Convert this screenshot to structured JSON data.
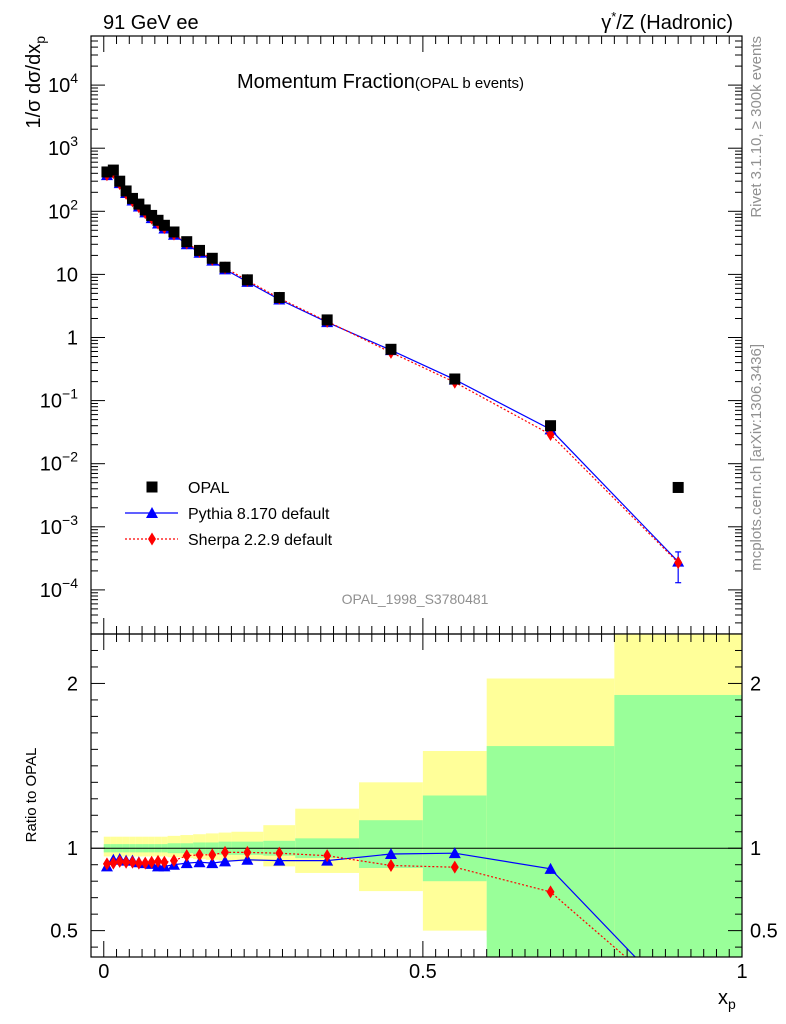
{
  "header": {
    "left": "91 GeV ee",
    "right_prefix": "γ",
    "right_sup": "*",
    "right_suffix": "/Z (Hadronic)"
  },
  "side_text": {
    "rivet": "Rivet 3.1.10, ≥ 300k events",
    "mcplots": "mcplots.cern.ch [arXiv:1306.3436]"
  },
  "watermark": "OPAL_1998_S3780481",
  "chart_data": [
    {
      "type": "scatter",
      "panel": "main",
      "title": "Momentum Fraction",
      "subtitle": "(OPAL b events)",
      "ylabel": "1/σ dσ/dx",
      "ylabel_sub": "p",
      "yscale": "log",
      "ylim": [
        2e-05,
        60000
      ],
      "xlim": [
        -0.02,
        1.0
      ],
      "yticks": [
        {
          "v": 0.0001,
          "b": "10",
          "e": "−4"
        },
        {
          "v": 0.001,
          "b": "10",
          "e": "−3"
        },
        {
          "v": 0.01,
          "b": "10",
          "e": "−2"
        },
        {
          "v": 0.1,
          "b": "10",
          "e": "−1"
        },
        {
          "v": 1,
          "b": "1",
          "e": ""
        },
        {
          "v": 10,
          "b": "10",
          "e": ""
        },
        {
          "v": 100,
          "b": "10",
          "e": "2"
        },
        {
          "v": 1000,
          "b": "10",
          "e": "3"
        },
        {
          "v": 10000,
          "b": "10",
          "e": "4"
        }
      ],
      "legend_position": "bottom-left",
      "series": [
        {
          "name": "OPAL",
          "color": "#000000",
          "marker": "square",
          "points": [
            [
              0.005,
              420
            ],
            [
              0.015,
              450
            ],
            [
              0.025,
              300
            ],
            [
              0.035,
              210
            ],
            [
              0.045,
              160
            ],
            [
              0.055,
              130
            ],
            [
              0.065,
              105
            ],
            [
              0.075,
              86
            ],
            [
              0.085,
              72
            ],
            [
              0.095,
              60
            ],
            [
              0.11,
              47
            ],
            [
              0.13,
              33
            ],
            [
              0.15,
              24
            ],
            [
              0.17,
              18
            ],
            [
              0.19,
              13
            ],
            [
              0.225,
              8.2
            ],
            [
              0.275,
              4.3
            ],
            [
              0.35,
              1.9
            ],
            [
              0.45,
              0.65
            ],
            [
              0.55,
              0.22
            ],
            [
              0.7,
              0.04
            ],
            [
              0.9,
              0.0042
            ]
          ]
        },
        {
          "name": "Pythia 8.170 default",
          "color": "#0000ff",
          "marker": "triangle",
          "line": "solid",
          "points": [
            [
              0.005,
              375
            ],
            [
              0.015,
              420
            ],
            [
              0.025,
              280
            ],
            [
              0.035,
              195
            ],
            [
              0.045,
              148
            ],
            [
              0.055,
              119
            ],
            [
              0.065,
              96
            ],
            [
              0.075,
              78
            ],
            [
              0.085,
              64
            ],
            [
              0.095,
              53.5
            ],
            [
              0.11,
              42.5
            ],
            [
              0.13,
              30
            ],
            [
              0.15,
              22
            ],
            [
              0.17,
              16.5
            ],
            [
              0.19,
              12
            ],
            [
              0.225,
              7.6
            ],
            [
              0.275,
              4.0
            ],
            [
              0.35,
              1.75
            ],
            [
              0.45,
              0.63
            ],
            [
              0.55,
              0.215
            ],
            [
              0.7,
              0.035
            ],
            [
              0.9,
              0.00028
            ]
          ]
        },
        {
          "name": "Sherpa 2.2.9 default",
          "color": "#ff0000",
          "marker": "diamond",
          "line": "dotted",
          "points": [
            [
              0.005,
              380
            ],
            [
              0.015,
              410
            ],
            [
              0.025,
              275
            ],
            [
              0.035,
              192
            ],
            [
              0.045,
              146
            ],
            [
              0.055,
              118
            ],
            [
              0.065,
              95
            ],
            [
              0.075,
              78
            ],
            [
              0.085,
              65
            ],
            [
              0.095,
              55
            ],
            [
              0.11,
              43.5
            ],
            [
              0.13,
              31.5
            ],
            [
              0.15,
              23.2
            ],
            [
              0.17,
              17.3
            ],
            [
              0.19,
              12.7
            ],
            [
              0.225,
              8.0
            ],
            [
              0.275,
              4.2
            ],
            [
              0.35,
              1.8
            ],
            [
              0.45,
              0.58
            ],
            [
              0.55,
              0.195
            ],
            [
              0.7,
              0.029
            ],
            [
              0.9,
              0.00027
            ]
          ]
        }
      ]
    },
    {
      "type": "line",
      "panel": "ratio",
      "ylabel": "Ratio to OPAL",
      "xlabel": "x",
      "xlabel_sub": "p",
      "xlim": [
        -0.02,
        1.0
      ],
      "ylim": [
        0.34,
        2.3
      ],
      "yticks": [
        0.5,
        1,
        2
      ],
      "ytick_labels": [
        "0.5",
        "1",
        "2"
      ],
      "xticks": [
        0,
        0.5,
        1
      ],
      "xtick_labels": [
        "0",
        "0.5",
        "1"
      ],
      "uncertainty_bands": {
        "bins": [
          [
            0.0,
            0.01
          ],
          [
            0.01,
            0.02
          ],
          [
            0.02,
            0.03
          ],
          [
            0.03,
            0.04
          ],
          [
            0.04,
            0.05
          ],
          [
            0.05,
            0.06
          ],
          [
            0.06,
            0.07
          ],
          [
            0.07,
            0.08
          ],
          [
            0.08,
            0.09
          ],
          [
            0.09,
            0.1
          ],
          [
            0.1,
            0.12
          ],
          [
            0.12,
            0.14
          ],
          [
            0.14,
            0.16
          ],
          [
            0.16,
            0.18
          ],
          [
            0.18,
            0.2
          ],
          [
            0.2,
            0.25
          ],
          [
            0.25,
            0.3
          ],
          [
            0.3,
            0.4
          ],
          [
            0.4,
            0.5
          ],
          [
            0.5,
            0.6
          ],
          [
            0.6,
            0.8
          ],
          [
            0.8,
            1.0
          ]
        ],
        "stat_color": "#99ff99",
        "total_color": "#ffff99",
        "stat": [
          [
            0.975,
            1.025
          ],
          [
            0.975,
            1.025
          ],
          [
            0.975,
            1.025
          ],
          [
            0.975,
            1.025
          ],
          [
            0.975,
            1.025
          ],
          [
            0.975,
            1.025
          ],
          [
            0.975,
            1.025
          ],
          [
            0.975,
            1.025
          ],
          [
            0.975,
            1.025
          ],
          [
            0.975,
            1.025
          ],
          [
            0.97,
            1.03
          ],
          [
            0.97,
            1.03
          ],
          [
            0.965,
            1.035
          ],
          [
            0.965,
            1.035
          ],
          [
            0.96,
            1.04
          ],
          [
            0.96,
            1.04
          ],
          [
            0.955,
            1.045
          ],
          [
            0.94,
            1.06
          ],
          [
            0.88,
            1.17
          ],
          [
            0.8,
            1.32
          ],
          [
            0.34,
            1.62
          ],
          [
            0.34,
            1.93
          ]
        ],
        "total": [
          [
            0.95,
            1.07
          ],
          [
            0.95,
            1.07
          ],
          [
            0.95,
            1.07
          ],
          [
            0.95,
            1.07
          ],
          [
            0.95,
            1.07
          ],
          [
            0.95,
            1.07
          ],
          [
            0.95,
            1.07
          ],
          [
            0.95,
            1.07
          ],
          [
            0.95,
            1.07
          ],
          [
            0.95,
            1.07
          ],
          [
            0.945,
            1.075
          ],
          [
            0.94,
            1.08
          ],
          [
            0.935,
            1.085
          ],
          [
            0.93,
            1.09
          ],
          [
            0.925,
            1.095
          ],
          [
            0.92,
            1.1
          ],
          [
            0.89,
            1.14
          ],
          [
            0.85,
            1.24
          ],
          [
            0.74,
            1.4
          ],
          [
            0.5,
            1.59
          ],
          [
            0.46,
            2.03
          ],
          [
            0.34,
            2.3
          ]
        ]
      },
      "series": [
        {
          "name": "Pythia 8.170 default",
          "color": "#0000ff",
          "marker": "triangle",
          "line": "solid",
          "points": [
            [
              0.005,
              0.89
            ],
            [
              0.015,
              0.93
            ],
            [
              0.025,
              0.935
            ],
            [
              0.035,
              0.925
            ],
            [
              0.045,
              0.925
            ],
            [
              0.055,
              0.915
            ],
            [
              0.065,
              0.91
            ],
            [
              0.075,
              0.905
            ],
            [
              0.085,
              0.89
            ],
            [
              0.095,
              0.89
            ],
            [
              0.11,
              0.9
            ],
            [
              0.13,
              0.91
            ],
            [
              0.15,
              0.915
            ],
            [
              0.17,
              0.91
            ],
            [
              0.19,
              0.92
            ],
            [
              0.225,
              0.93
            ],
            [
              0.275,
              0.925
            ],
            [
              0.35,
              0.925
            ],
            [
              0.45,
              0.965
            ],
            [
              0.55,
              0.97
            ],
            [
              0.7,
              0.875
            ],
            [
              0.9,
              0.068
            ]
          ]
        },
        {
          "name": "Sherpa 2.2.9 default",
          "color": "#ff0000",
          "marker": "diamond",
          "line": "dotted",
          "points": [
            [
              0.005,
              0.905
            ],
            [
              0.015,
              0.91
            ],
            [
              0.025,
              0.92
            ],
            [
              0.035,
              0.915
            ],
            [
              0.045,
              0.915
            ],
            [
              0.055,
              0.91
            ],
            [
              0.065,
              0.91
            ],
            [
              0.075,
              0.915
            ],
            [
              0.085,
              0.92
            ],
            [
              0.095,
              0.915
            ],
            [
              0.11,
              0.925
            ],
            [
              0.13,
              0.955
            ],
            [
              0.15,
              0.96
            ],
            [
              0.17,
              0.96
            ],
            [
              0.19,
              0.975
            ],
            [
              0.225,
              0.975
            ],
            [
              0.275,
              0.97
            ],
            [
              0.35,
              0.955
            ],
            [
              0.45,
              0.895
            ],
            [
              0.55,
              0.885
            ],
            [
              0.7,
              0.735
            ],
            [
              0.9,
              0.064
            ]
          ]
        }
      ]
    }
  ]
}
